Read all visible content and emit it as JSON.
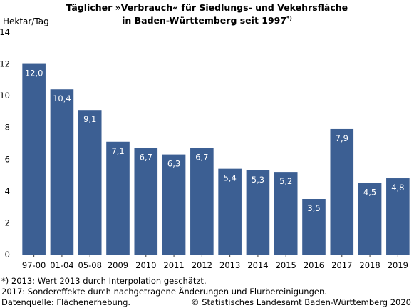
{
  "title": {
    "line1": "Täglicher »Verbrauch« für Siedlungs- und Vekehrsfläche",
    "line2": "in Baden-Württemberg seit 1997",
    "note_marker": "*)"
  },
  "footnotes": [
    "*) 2013: Wert 2013 durch Interpolation geschätzt.",
    "2017: Sondereffekte durch nachgetragene Änderungen und Flurbereinigungen.",
    "Datenquelle: Flächenerhebung."
  ],
  "copyright": "© Statistisches Landesamt Baden-Württemberg 2020",
  "colors": {
    "bar": "#3c5f93",
    "axis": "#333333",
    "label": "#ffffff"
  },
  "chart_data": {
    "type": "bar",
    "ylabel": "Hektar/Tag",
    "ylim": [
      0,
      14
    ],
    "yticks": [
      "0",
      "2",
      "4",
      "6",
      "8",
      "10",
      "12",
      "14"
    ],
    "grid": false,
    "categories": [
      "97-00",
      "01-04",
      "05-08",
      "2009",
      "2010",
      "2011",
      "2012",
      "2013",
      "2014",
      "2015",
      "2016",
      "2017",
      "2018",
      "2019"
    ],
    "values": [
      12.0,
      10.4,
      9.1,
      7.1,
      6.7,
      6.3,
      6.7,
      5.4,
      5.3,
      5.2,
      3.5,
      7.9,
      4.5,
      4.8
    ],
    "value_labels": [
      "12,0",
      "10,4",
      "9,1",
      "7,1",
      "6,7",
      "6,3",
      "6,7",
      "5,4",
      "5,3",
      "5,2",
      "3,5",
      "7,9",
      "4,5",
      "4,8"
    ]
  }
}
